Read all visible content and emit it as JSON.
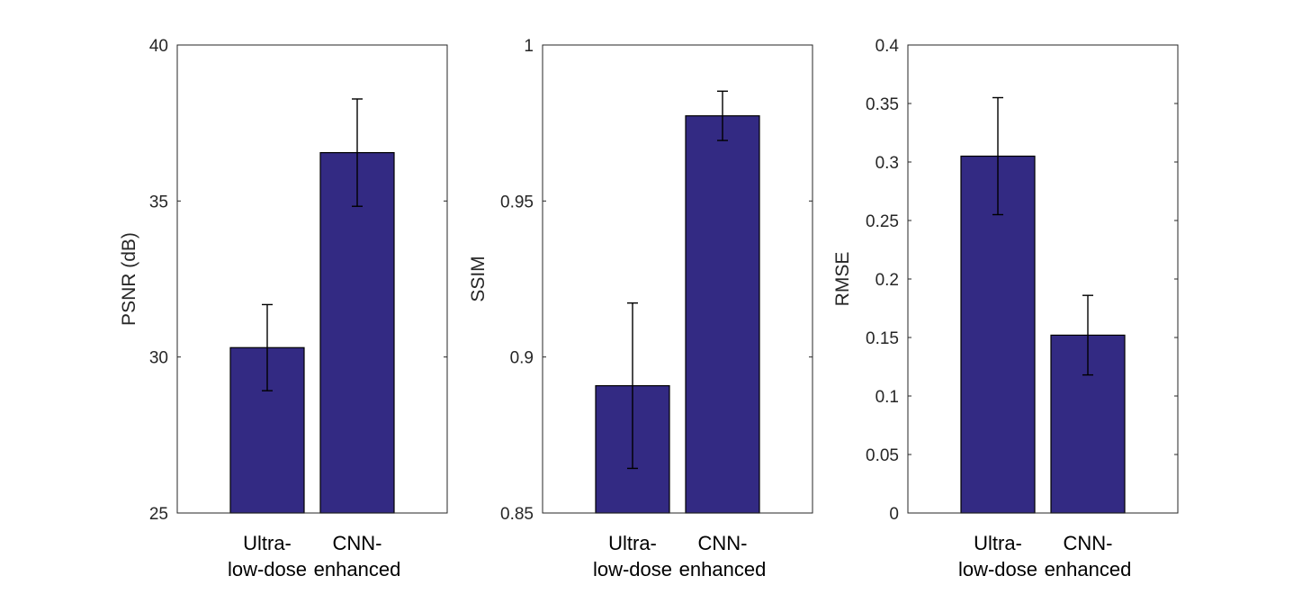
{
  "chart_data": [
    {
      "type": "bar",
      "categories": [
        [
          "Ultra-",
          "low-dose"
        ],
        [
          "CNN-",
          "enhanced"
        ]
      ],
      "values": [
        30.3,
        36.55
      ],
      "errors": [
        1.38,
        1.72
      ],
      "ylabel": "PSNR (dB)",
      "xlabel": "",
      "ylim": [
        25,
        40
      ],
      "yticks": [
        25,
        30,
        35,
        40
      ],
      "ytick_labels": [
        "25",
        "30",
        "35",
        "40"
      ],
      "bar_color": "#332a83",
      "grid": false
    },
    {
      "type": "bar",
      "categories": [
        [
          "Ultra-",
          "low-dose"
        ],
        [
          "CNN-",
          "enhanced"
        ]
      ],
      "values": [
        0.8908,
        0.9773
      ],
      "errors": [
        0.0265,
        0.0079
      ],
      "ylabel": "SSIM",
      "xlabel": "",
      "ylim": [
        0.85,
        1
      ],
      "yticks": [
        0.85,
        0.9,
        0.95,
        1
      ],
      "ytick_labels": [
        "0.85",
        "0.9",
        "0.95",
        "1"
      ],
      "bar_color": "#332a83",
      "grid": false
    },
    {
      "type": "bar",
      "categories": [
        [
          "Ultra-",
          "low-dose"
        ],
        [
          "CNN-",
          "enhanced"
        ]
      ],
      "values": [
        0.305,
        0.152
      ],
      "errors": [
        0.05,
        0.034
      ],
      "ylabel": "RMSE",
      "xlabel": "",
      "ylim": [
        0,
        0.4
      ],
      "yticks": [
        0,
        0.05,
        0.1,
        0.15,
        0.2,
        0.25,
        0.3,
        0.35,
        0.4
      ],
      "ytick_labels": [
        "0",
        "0.05",
        "0.1",
        "0.15",
        "0.2",
        "0.25",
        "0.3",
        "0.35",
        "0.4"
      ],
      "bar_color": "#332a83",
      "grid": false
    }
  ]
}
